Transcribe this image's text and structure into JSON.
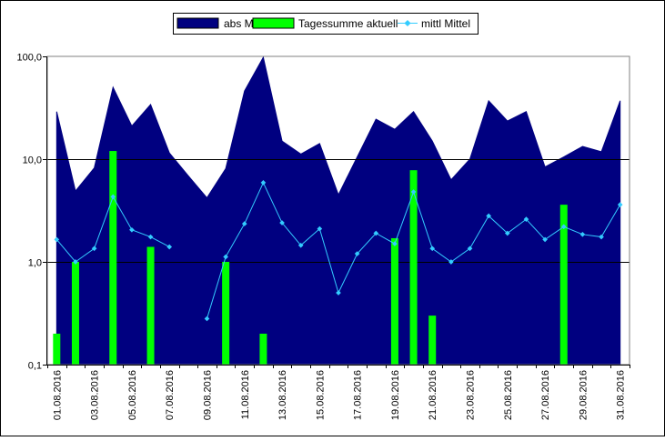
{
  "chart_data": {
    "type": "area",
    "title": "",
    "xlabel": "",
    "ylabel": "",
    "yscale": "log",
    "ylim": [
      0.1,
      100
    ],
    "grid": true,
    "legend_position": "top",
    "y_tick_labels": [
      "0,1",
      "1,0",
      "10,0",
      "100,0"
    ],
    "x_tick_labels": [
      "01.08.2016",
      "03.08.2016",
      "05.08.2016",
      "07.08.2016",
      "09.08.2016",
      "11.08.2016",
      "13.08.2016",
      "15.08.2016",
      "17.08.2016",
      "19.08.2016",
      "21.08.2016",
      "23.08.2016",
      "25.08.2016",
      "27.08.2016",
      "29.08.2016",
      "31.08.2016"
    ],
    "x": [
      "01.08.2016",
      "02.08.2016",
      "03.08.2016",
      "04.08.2016",
      "05.08.2016",
      "06.08.2016",
      "07.08.2016",
      "08.08.2016",
      "09.08.2016",
      "10.08.2016",
      "11.08.2016",
      "12.08.2016",
      "13.08.2016",
      "14.08.2016",
      "15.08.2016",
      "16.08.2016",
      "17.08.2016",
      "18.08.2016",
      "19.08.2016",
      "20.08.2016",
      "21.08.2016",
      "22.08.2016",
      "23.08.2016",
      "24.08.2016",
      "25.08.2016",
      "26.08.2016",
      "27.08.2016",
      "28.08.2016",
      "29.08.2016",
      "30.08.2016",
      "31.08.2016"
    ],
    "series": [
      {
        "name": "abs Max",
        "kind": "area",
        "color": "#000080",
        "values": [
          29,
          4.9,
          8.2,
          50,
          21,
          34,
          11.5,
          6.9,
          4.2,
          8.1,
          46,
          98,
          15,
          11.2,
          14.2,
          4.5,
          10.5,
          24.5,
          19.5,
          29,
          15,
          6.3,
          10,
          37,
          23.5,
          29,
          8.4,
          10.5,
          13.3,
          11.8,
          37
        ]
      },
      {
        "name": "Tagessumme aktuell",
        "kind": "bar",
        "color": "#00ff00",
        "values": [
          0.2,
          1.0,
          null,
          12,
          null,
          1.4,
          null,
          null,
          null,
          1.0,
          null,
          0.2,
          null,
          null,
          null,
          null,
          null,
          null,
          1.7,
          7.8,
          0.3,
          null,
          null,
          null,
          null,
          null,
          null,
          3.6,
          null,
          null,
          null
        ]
      },
      {
        "name": "mittl Mittel",
        "kind": "line",
        "color": "#33ccff",
        "values": [
          1.65,
          1.0,
          1.35,
          4.3,
          2.05,
          1.75,
          1.4,
          null,
          0.28,
          1.12,
          2.35,
          5.9,
          2.4,
          1.45,
          2.1,
          0.5,
          1.2,
          1.9,
          1.5,
          4.8,
          1.35,
          1.0,
          1.35,
          2.8,
          1.9,
          2.6,
          1.65,
          2.2,
          1.85,
          1.75,
          3.6
        ]
      }
    ]
  }
}
